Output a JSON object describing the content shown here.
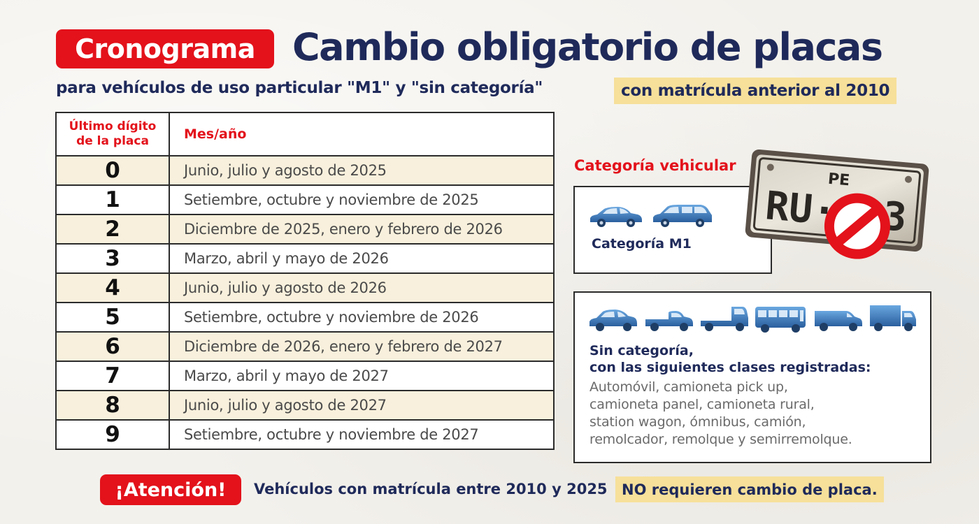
{
  "header": {
    "badge": "Cronograma",
    "title": "Cambio obligatorio de placas",
    "subtitle": "para vehículos de uso particular \"M1\" y \"sin categoría\"",
    "subtitle_highlight": "con matrícula anterior al 2010"
  },
  "table": {
    "col1_line1": "Último dígito",
    "col1_line2": "de la placa",
    "col2": "Mes/año",
    "rows": [
      {
        "digit": "0",
        "period": "Junio, julio y agosto de 2025"
      },
      {
        "digit": "1",
        "period": "Setiembre, octubre y noviembre de 2025"
      },
      {
        "digit": "2",
        "period": "Diciembre de 2025,  enero y febrero de 2026"
      },
      {
        "digit": "3",
        "period": "Marzo, abril y mayo de 2026"
      },
      {
        "digit": "4",
        "period": "Junio, julio y agosto de 2026"
      },
      {
        "digit": "5",
        "period": "Setiembre, octubre y noviembre de 2026"
      },
      {
        "digit": "6",
        "period": "Diciembre de 2026,  enero y febrero de 2027"
      },
      {
        "digit": "7",
        "period": "Marzo, abril y mayo de 2027"
      },
      {
        "digit": "8",
        "period": "Junio, julio y agosto de 2027"
      },
      {
        "digit": "9",
        "period": "Setiembre, octubre y noviembre de 2027"
      }
    ]
  },
  "category": {
    "title": "Categoría vehicular",
    "m1_label": "Categoría M1",
    "plate": {
      "top_text": "PE",
      "main_text": "RU·9  3"
    },
    "sin_title": "Sin categoría,",
    "sin_sub": "con las siguientes clases registradas:",
    "sin_lines": [
      "Automóvil, camioneta pick up,",
      "camioneta panel, camioneta rural,",
      "station wagon, ómnibus, camión,",
      "remolcador, remolque y semirremolque."
    ]
  },
  "footer": {
    "badge": "¡Atención!",
    "text": "Vehículos con matrícula entre 2010 y 2025",
    "highlight": "NO requieren cambio de placa."
  },
  "colors": {
    "red": "#e3121b",
    "navy": "#1f2a5a",
    "highlight": "#f6e09a",
    "row_tint": "#f8f0dc",
    "vehicle_blue": "#3f80c4"
  }
}
